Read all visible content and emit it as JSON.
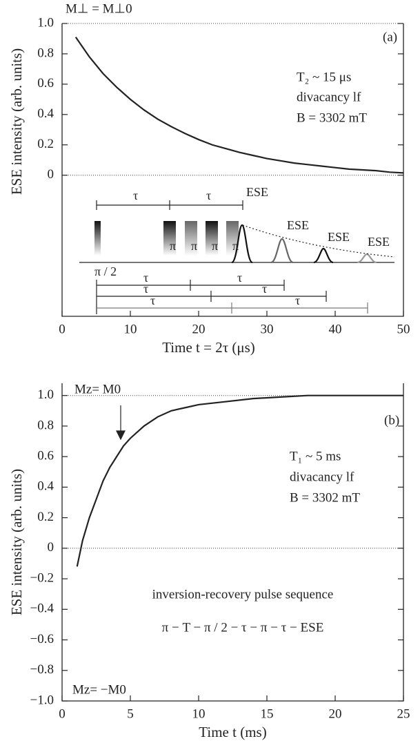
{
  "chart_data": [
    {
      "type": "line",
      "y_label": "ESE intensity (arb. units)",
      "x_label": "Time t = 2τ (μs)",
      "x": [
        2,
        4,
        6,
        8,
        10,
        12,
        14,
        16,
        18,
        20,
        22,
        24,
        26,
        28,
        30,
        32,
        34,
        36,
        38,
        40,
        42,
        44,
        46,
        48,
        50
      ],
      "series": [
        {
          "color": "#222222",
          "values": [
            0.91,
            0.78,
            0.67,
            0.58,
            0.5,
            0.43,
            0.37,
            0.32,
            0.275,
            0.235,
            0.2,
            0.175,
            0.15,
            0.13,
            0.11,
            0.095,
            0.08,
            0.07,
            0.06,
            0.05,
            0.04,
            0.035,
            0.03,
            0.02,
            0.015
          ]
        }
      ],
      "xlim": [
        0,
        50
      ],
      "xticks": [
        0,
        10,
        20,
        30,
        40,
        50
      ],
      "ylim": [
        -0.93,
        1.0
      ],
      "yticks": [
        0,
        0.2,
        0.4,
        0.6,
        0.8,
        {
          "value": 1,
          "label": "1.0"
        }
      ],
      "hlines": [
        0,
        1
      ],
      "annotations": [
        "M⊥ = M⊥0",
        "(a)",
        "T₂ ~ 15 μs",
        "divacancy lf",
        "B = 3302 mT"
      ],
      "inset_labels": [
        "τ",
        "τ",
        "ESE",
        "ESE",
        "ESE",
        "ESE",
        "π / 2",
        "π",
        "π",
        "π",
        "π",
        "τ",
        "τ",
        "τ",
        "τ",
        "τ",
        "τ"
      ]
    },
    {
      "type": "line",
      "y_label": "ESE intensity (arb. units)",
      "x_label": "Time t (ms)",
      "x": [
        1.1,
        1.5,
        2,
        2.5,
        3,
        3.5,
        4,
        4.5,
        5,
        6,
        7,
        8,
        9,
        10,
        12,
        14,
        16,
        18,
        20,
        22,
        25
      ],
      "series": [
        {
          "color": "#222222",
          "values": [
            -0.12,
            0.05,
            0.2,
            0.32,
            0.44,
            0.53,
            0.6,
            0.67,
            0.72,
            0.8,
            0.86,
            0.9,
            0.92,
            0.94,
            0.96,
            0.98,
            0.99,
            1.0,
            1.0,
            1.0,
            1.0
          ]
        }
      ],
      "xlim": [
        0,
        25
      ],
      "xticks": [
        0,
        5,
        10,
        15,
        20,
        25
      ],
      "ylim": [
        -1.0,
        1.08
      ],
      "yticks": [
        {
          "value": -1,
          "label": "−1.0"
        },
        {
          "value": -0.8,
          "label": "−0.8"
        },
        {
          "value": -0.6,
          "label": "−0.6"
        },
        {
          "value": -0.4,
          "label": "−0.4"
        },
        {
          "value": -0.2,
          "label": "−0.2"
        },
        0,
        0.2,
        0.4,
        0.6,
        0.8,
        {
          "value": 1,
          "label": "1.0"
        }
      ],
      "hlines": [
        0,
        1
      ],
      "annotations": [
        "Mz= M0",
        "(b)",
        "T₁ ~ 5 ms",
        "divacancy lf",
        "B = 3302 mT",
        "inversion-recovery pulse sequence",
        "π − T − π / 2 − τ − π − τ − ESE",
        "Mz= −M0"
      ]
    }
  ]
}
